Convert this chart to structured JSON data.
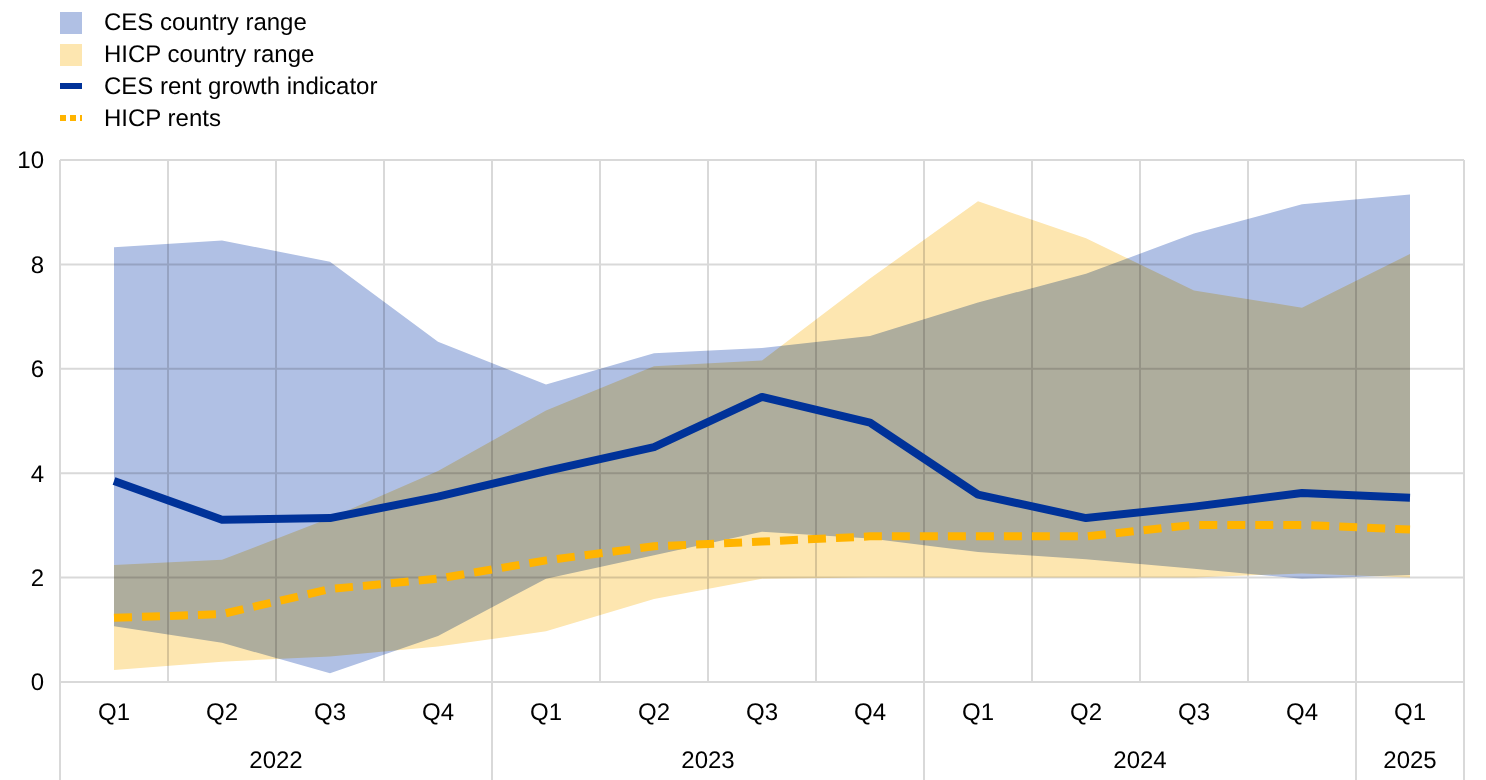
{
  "chart_data": {
    "type": "line",
    "categories": [
      "Q1",
      "Q2",
      "Q3",
      "Q4",
      "Q1",
      "Q2",
      "Q3",
      "Q4",
      "Q1",
      "Q2",
      "Q3",
      "Q4",
      "Q1"
    ],
    "annotations": [
      "2022",
      "2023",
      "2024",
      "2025"
    ],
    "series": [
      {
        "name": "CES country range",
        "type": "area",
        "color": "#b0c0e4",
        "values": [
          null,
          null,
          null,
          null,
          null,
          null,
          null,
          null,
          null,
          null,
          null,
          null,
          null
        ],
        "lower": [
          1.07,
          0.75,
          0.17,
          0.88,
          1.98,
          2.43,
          2.88,
          2.75,
          2.49,
          2.35,
          2.17,
          1.98,
          2.05
        ],
        "upper": [
          8.33,
          8.46,
          8.05,
          6.52,
          5.7,
          6.3,
          6.4,
          6.63,
          7.27,
          7.82,
          8.59,
          9.15,
          9.34
        ]
      },
      {
        "name": "HICP country range",
        "type": "area",
        "color": "#fde6b0",
        "values": [
          null,
          null,
          null,
          null,
          null,
          null,
          null,
          null,
          null,
          null,
          null,
          null,
          null
        ],
        "lower": [
          0.23,
          0.39,
          0.49,
          0.68,
          0.97,
          1.59,
          1.98,
          2.0,
          2.0,
          2.0,
          2.0,
          2.08,
          2.0
        ],
        "upper": [
          2.24,
          2.34,
          3.14,
          4.04,
          5.2,
          6.05,
          6.16,
          7.73,
          9.21,
          8.5,
          7.5,
          7.17,
          8.2
        ]
      },
      {
        "name": "CES rent growth indicator",
        "color": "#003299",
        "line_style": "solid",
        "values": [
          3.85,
          3.11,
          3.14,
          3.55,
          4.04,
          4.5,
          5.46,
          4.97,
          3.59,
          3.14,
          3.36,
          3.62,
          3.53
        ]
      },
      {
        "name": "HICP rents",
        "color": "#ffb400",
        "line_style": "dashed",
        "values": [
          1.23,
          1.3,
          1.78,
          1.98,
          2.33,
          2.6,
          2.69,
          2.79,
          2.79,
          2.79,
          3.01,
          3.01,
          2.92
        ]
      }
    ],
    "ylim": [
      0,
      10
    ],
    "yticks": [
      0,
      2,
      4,
      6,
      8,
      10
    ],
    "grid": true,
    "legend": "top left"
  }
}
